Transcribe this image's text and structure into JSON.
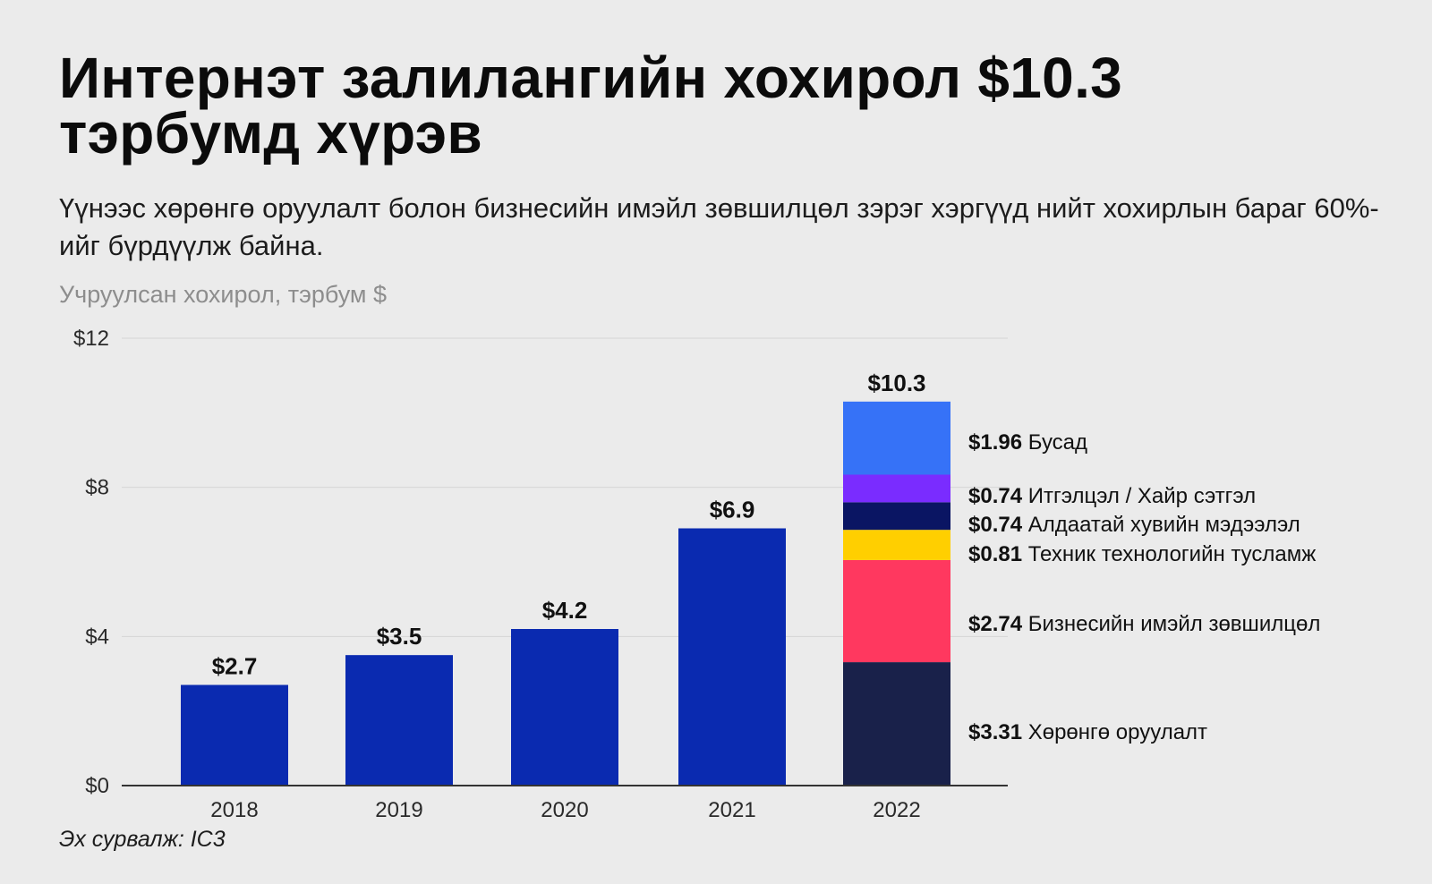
{
  "header": {
    "title": "Интернэт залилангийн хохирол $10.3 тэрбумд хүрэв",
    "subtitle": "Үүнээс хөрөнгө оруулалт болон бизнесийн имэйл зөвшилцөл зэрэг хэргүүд нийт хохирлын бараг 60%-ийг бүрдүүлж байна.",
    "unit_note": "Учруулсан хохирол, тэрбум $"
  },
  "footer": {
    "source": "Эх сурвалж: IC3"
  },
  "chart_data": {
    "type": "bar",
    "categories": [
      "2018",
      "2019",
      "2020",
      "2021",
      "2022"
    ],
    "values": [
      2.7,
      3.5,
      4.2,
      6.9,
      10.3
    ],
    "value_labels": [
      "$2.7",
      "$3.5",
      "$4.2",
      "$6.9",
      "$10.3"
    ],
    "ylim": [
      0,
      12
    ],
    "yticks": [
      0,
      4,
      8,
      12
    ],
    "ytick_labels": [
      "$0",
      "$4",
      "$8",
      "$12"
    ],
    "grid": true,
    "bar_color": "#0a2ab0",
    "stacked_breakdown": {
      "category": "2022",
      "segments": [
        {
          "value_label": "$3.31",
          "name": "Хөрөнгө оруулалт",
          "value": 3.31,
          "color": "#19214a"
        },
        {
          "value_label": "$2.74",
          "name": "Бизнесийн имэйл зөвшилцөл",
          "value": 2.74,
          "color": "#ff385f"
        },
        {
          "value_label": "$0.81",
          "name": "Техник технологийн тусламж",
          "value": 0.81,
          "color": "#ffcf00"
        },
        {
          "value_label": "$0.74",
          "name": "Алдаатай хувийн мэдээлэл",
          "value": 0.74,
          "color": "#0a1563"
        },
        {
          "value_label": "$0.74",
          "name": "Итгэлцэл / Хайр сэтгэл",
          "value": 0.74,
          "color": "#7a2cff"
        },
        {
          "value_label": "$1.96",
          "name": "Бусад",
          "value": 1.96,
          "color": "#3672f7"
        }
      ]
    }
  }
}
